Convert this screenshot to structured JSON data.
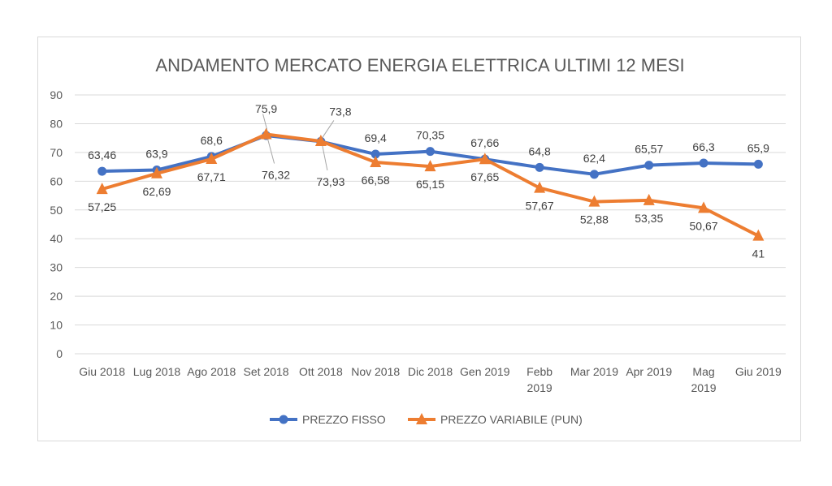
{
  "chart_data": {
    "type": "line",
    "title": "ANDAMENTO MERCATO ENERGIA ELETTRICA ULTIMI 12 MESI",
    "categories": [
      [
        "Giu 2018"
      ],
      [
        "Lug 2018"
      ],
      [
        "Ago 2018"
      ],
      [
        "Set 2018"
      ],
      [
        "Ott 2018"
      ],
      [
        "Nov 2018"
      ],
      [
        "Dic 2018"
      ],
      [
        "Gen 2019"
      ],
      [
        "Febb",
        "2019"
      ],
      [
        "Mar 2019"
      ],
      [
        "Apr 2019"
      ],
      [
        "Mag",
        "2019"
      ],
      [
        "Giu 2019"
      ]
    ],
    "ylim": [
      0,
      90
    ],
    "yticks": [
      0,
      10,
      20,
      30,
      40,
      50,
      60,
      70,
      80,
      90
    ],
    "grid": true,
    "legend_position": "bottom",
    "series": [
      {
        "name": "PREZZO FISSO",
        "color": "#4472c4",
        "marker": "circle",
        "values": [
          63.46,
          63.9,
          68.6,
          75.9,
          73.8,
          69.4,
          70.35,
          67.66,
          64.8,
          62.4,
          65.57,
          66.3,
          65.9
        ],
        "labels": [
          "63,46",
          "63,9",
          "68,6",
          "75,9",
          "73,8",
          "69,4",
          "70,35",
          "67,66",
          "64,8",
          "62,4",
          "65,57",
          "66,3",
          "65,9"
        ]
      },
      {
        "name": "PREZZO VARIABILE (PUN)",
        "color": "#ed7d31",
        "marker": "triangle",
        "values": [
          57.25,
          62.69,
          67.71,
          76.32,
          73.93,
          66.58,
          65.15,
          67.65,
          57.67,
          52.88,
          53.35,
          50.67,
          41
        ],
        "labels": [
          "57,25",
          "62,69",
          "67,71",
          "76,32",
          "73,93",
          "66,58",
          "65,15",
          "67,65",
          "57,67",
          "52,88",
          "53,35",
          "50,67",
          "41"
        ]
      }
    ]
  }
}
